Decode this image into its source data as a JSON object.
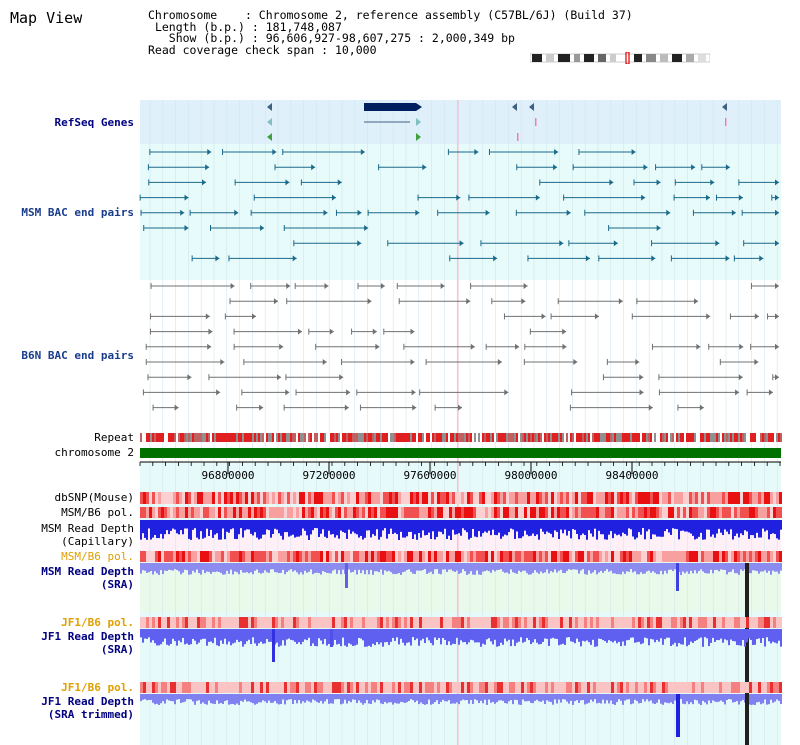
{
  "view_title": "Map View",
  "info": {
    "chromosome_key": "Chromosome",
    "chromosome_value": "Chromosome 2, reference assembly (C57BL/6J) (Build 37)",
    "length_key": "Length (b.p.)",
    "length_value": "181,748,087",
    "show_key": "Show (b.p.)",
    "show_value": "96,606,927-98,607,275 : 2,000,349 bp",
    "coverage_key": "Read coverage check span",
    "coverage_value": "10,000"
  },
  "tracks": {
    "refseq": "RefSeq Genes",
    "msm_bac": "MSM BAC end pairs",
    "b6n_bac": "B6N BAC end pairs",
    "repeat": "Repeat",
    "chromosome": "chromosome 2",
    "dbsnp": "dbSNP(Mouse)",
    "msm_b6_pol_1": "MSM/B6 pol.",
    "msm_read_depth_cap_1": "MSM Read Depth",
    "msm_read_depth_cap_2": "(Capillary)",
    "msm_b6_pol_2": "MSM/B6 pol.",
    "msm_read_depth_sra_1": "MSM Read Depth",
    "msm_read_depth_sra_2": "(SRA)",
    "jf1_b6_pol_1": "JF1/B6 pol.",
    "jf1_read_depth_1": "JF1 Read Depth",
    "jf1_read_depth_2": "(SRA)",
    "jf1_b6_pol_2": "JF1/B6 pol.",
    "jf1_trim_1": "JF1 Read Depth",
    "jf1_trim_2": "(SRA trimmed)"
  },
  "axis_ticks": [
    "96800000",
    "97200000",
    "97600000",
    "98000000",
    "98400000"
  ],
  "colors": {
    "refseq_bg": "#dff0fb",
    "bac_bg": "#e8fbfb",
    "track_bg": "#e6fafa",
    "chromosome_bar": "#007000",
    "msm_label": "#000080",
    "bac_label": "#1a3c8c",
    "pol_label": "#e0a000",
    "read_depth_blue": "#2020e0",
    "read_depth_light": "#8c8cf0"
  }
}
